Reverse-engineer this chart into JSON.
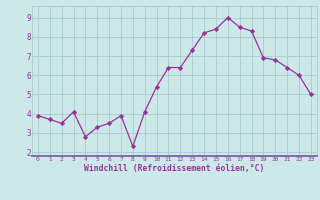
{
  "x": [
    0,
    1,
    2,
    3,
    4,
    5,
    6,
    7,
    8,
    9,
    10,
    11,
    12,
    13,
    14,
    15,
    16,
    17,
    18,
    19,
    20,
    21,
    22,
    23
  ],
  "y": [
    3.9,
    3.7,
    3.5,
    4.1,
    2.8,
    3.3,
    3.5,
    3.9,
    2.3,
    4.1,
    5.4,
    6.4,
    6.4,
    7.3,
    8.2,
    8.4,
    9.0,
    8.5,
    8.3,
    6.9,
    6.8,
    6.4,
    6.0,
    5.0
  ],
  "line_color": "#993399",
  "marker": "D",
  "marker_size": 2.2,
  "bg_color": "#cce8e8",
  "grid_color": "#aacccc",
  "xlabel": "Windchill (Refroidissement éolien,°C)",
  "xlabel_color": "#993399",
  "tick_color": "#993399",
  "ylabel_ticks": [
    2,
    3,
    4,
    5,
    6,
    7,
    8,
    9
  ],
  "ylim": [
    1.8,
    9.6
  ],
  "xlim": [
    -0.5,
    23.5
  ],
  "spine_color": "#7755aa",
  "bottom_spine_color": "#7755aa"
}
